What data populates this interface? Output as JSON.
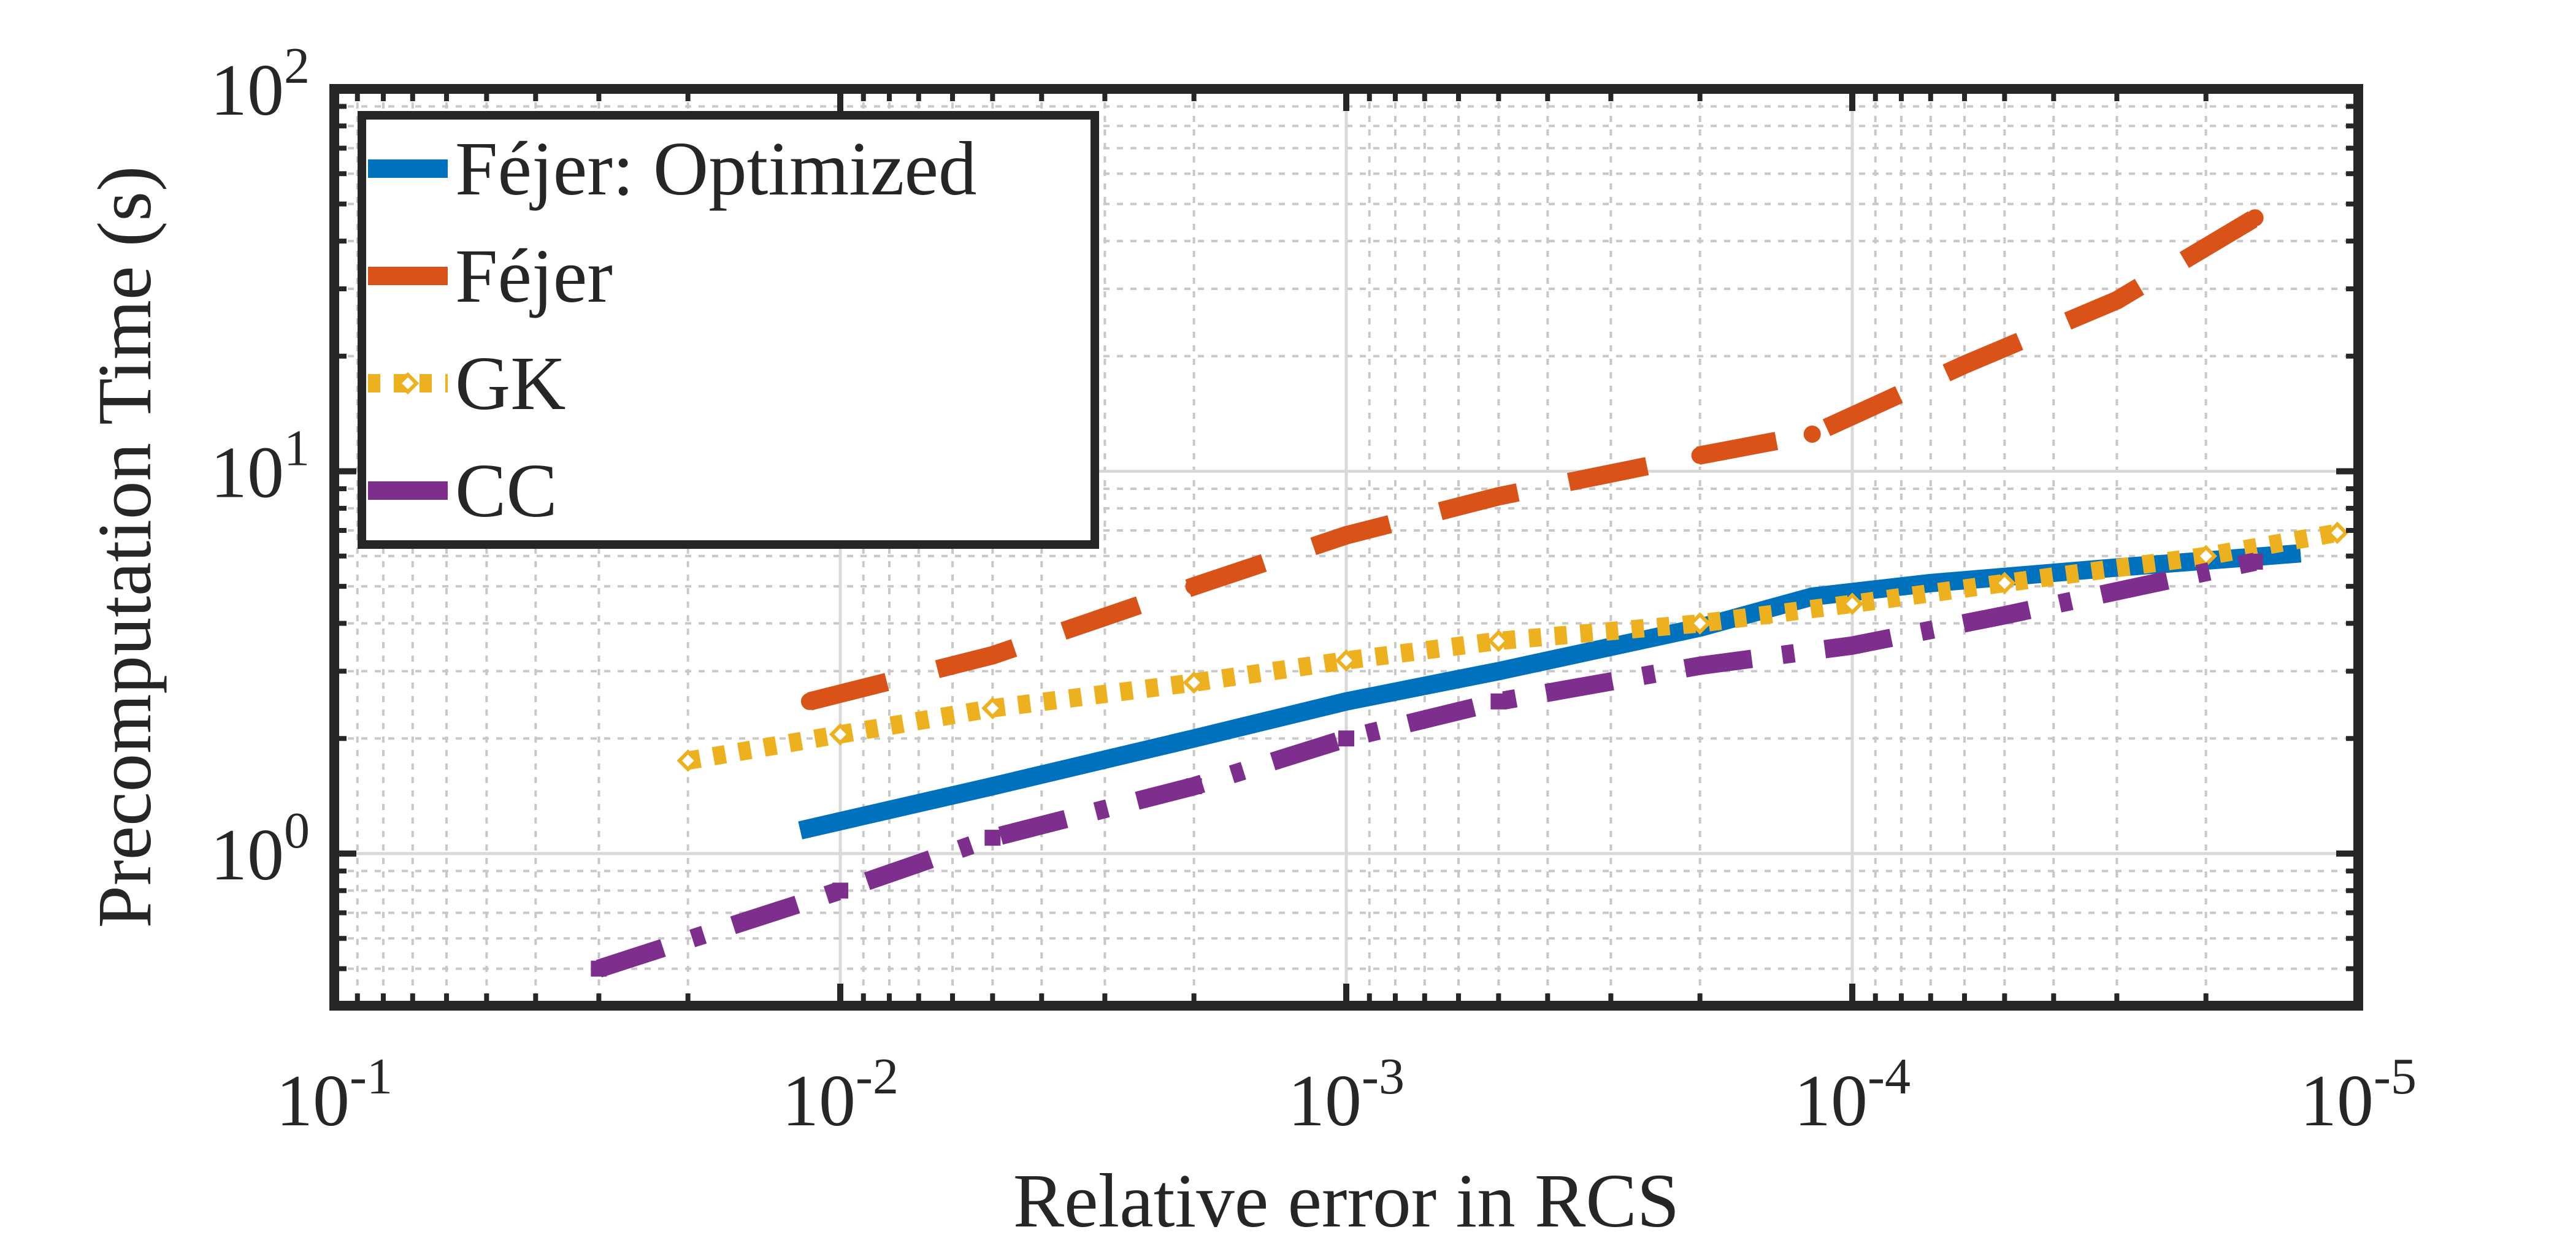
{
  "chart_data": {
    "type": "line",
    "title": "",
    "xlabel": "Relative error in RCS",
    "ylabel": "Precomputation Time (s)",
    "xscale": "log",
    "yscale": "log",
    "x_reversed": true,
    "xlim": [
      0.1,
      1e-05
    ],
    "ylim": [
      0.4,
      100
    ],
    "grid": "major and minor",
    "legend_position": "top-left",
    "xticks": [
      {
        "value": 0.1,
        "base": "10",
        "exp": "-1"
      },
      {
        "value": 0.01,
        "base": "10",
        "exp": "-2"
      },
      {
        "value": 0.001,
        "base": "10",
        "exp": "-3"
      },
      {
        "value": 0.0001,
        "base": "10",
        "exp": "-4"
      },
      {
        "value": 1e-05,
        "base": "10",
        "exp": "-5"
      }
    ],
    "yticks": [
      {
        "value": 1,
        "base": "10",
        "exp": "0"
      },
      {
        "value": 10,
        "base": "10",
        "exp": "1"
      },
      {
        "value": 100,
        "base": "10",
        "exp": "2"
      }
    ],
    "series": [
      {
        "name": "Féjer: Optimized",
        "color": "#0072BD",
        "dash": "solid",
        "marker": "none",
        "x": [
          0.012,
          0.005,
          0.002,
          0.001,
          0.0005,
          0.0002,
          0.00012,
          7e-05,
          3e-05,
          1.3e-05
        ],
        "y": [
          1.15,
          1.5,
          2.0,
          2.5,
          3.0,
          3.9,
          4.7,
          5.1,
          5.6,
          6.1
        ]
      },
      {
        "name": "Féjer",
        "color": "#D95319",
        "dash": "dash",
        "marker": "dot",
        "x": [
          0.0115,
          0.005,
          0.002,
          0.001,
          0.0005,
          0.0002,
          0.00012,
          6e-05,
          3e-05,
          1.6e-05
        ],
        "y": [
          2.5,
          3.3,
          5.0,
          6.8,
          8.6,
          11.0,
          12.5,
          19.0,
          28.0,
          46.0
        ]
      },
      {
        "name": "GK",
        "color": "#EDB120",
        "dash": "dot",
        "marker": "diamond",
        "x": [
          0.02,
          0.01,
          0.005,
          0.002,
          0.001,
          0.0005,
          0.0002,
          0.0001,
          5e-05,
          2e-05,
          1.1e-05
        ],
        "y": [
          1.75,
          2.05,
          2.4,
          2.8,
          3.2,
          3.6,
          4.0,
          4.5,
          5.1,
          6.0,
          6.9
        ]
      },
      {
        "name": "CC",
        "color": "#7E2F8E",
        "dash": "dashdot",
        "marker": "square",
        "x": [
          0.03,
          0.01,
          0.005,
          0.002,
          0.001,
          0.0005,
          0.0002,
          0.0001,
          5e-05,
          1.6e-05
        ],
        "y": [
          0.5,
          0.8,
          1.1,
          1.5,
          2.0,
          2.5,
          3.1,
          3.5,
          4.2,
          5.8
        ]
      }
    ]
  }
}
